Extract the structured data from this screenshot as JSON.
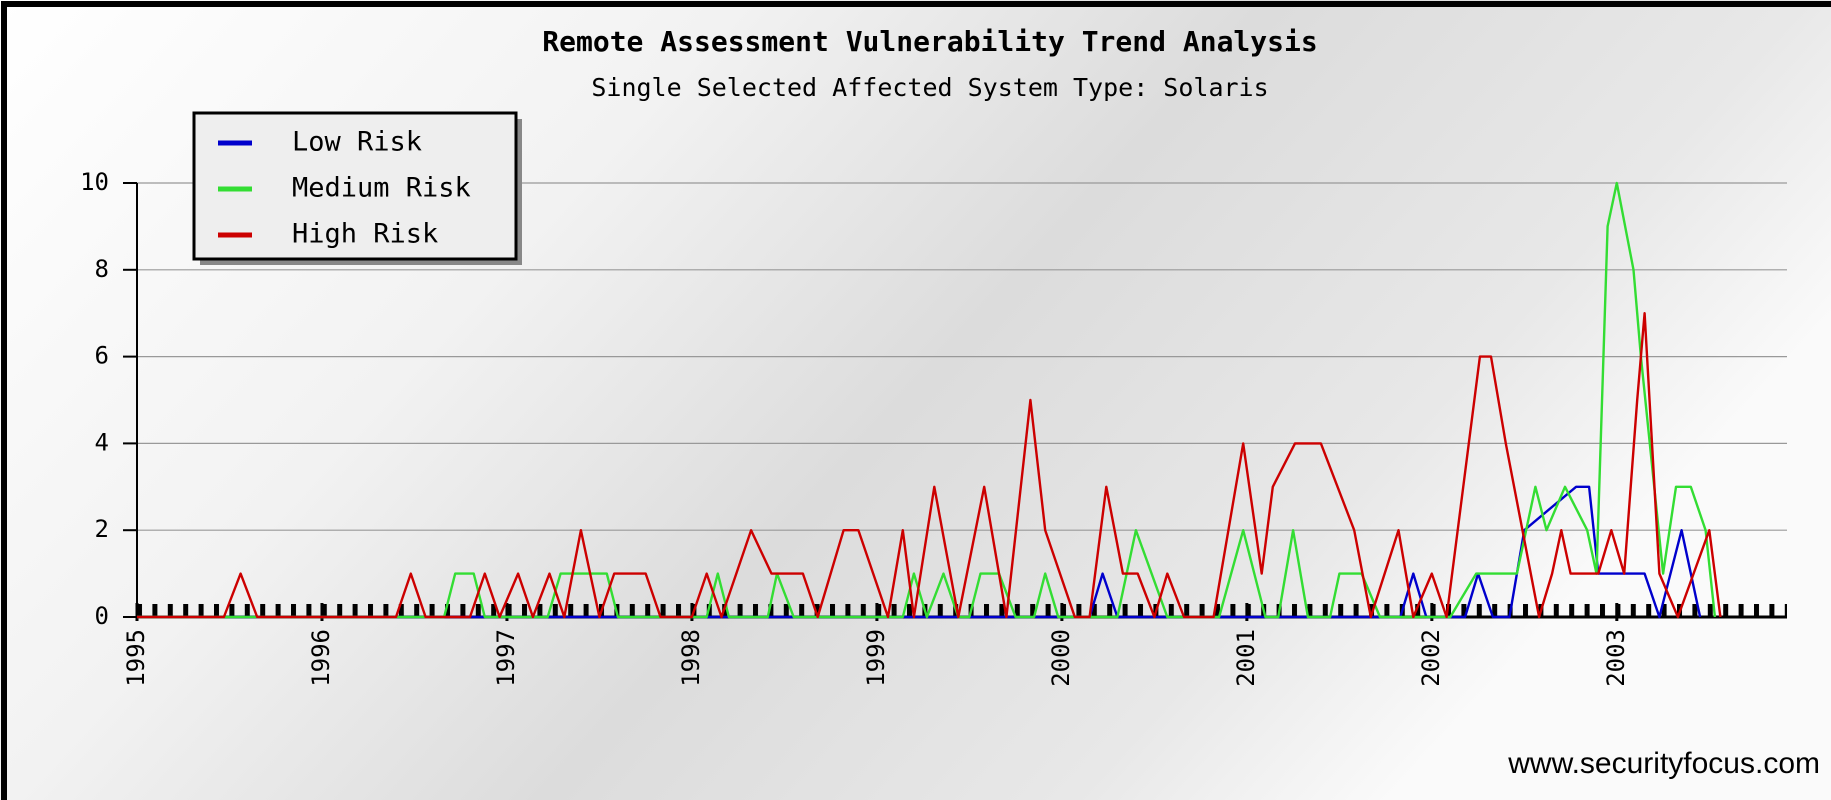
{
  "chart_data": {
    "type": "line",
    "title": "Remote Assessment Vulnerability Trend Analysis",
    "subtitle": "Single Selected Affected System Type: Solaris",
    "xlim": [
      1995,
      2003.92
    ],
    "xticks": [
      1995,
      1996,
      1997,
      1998,
      1999,
      2000,
      2001,
      2002,
      2003
    ],
    "ylim": [
      0,
      10
    ],
    "yticks": [
      0,
      2,
      4,
      6,
      8,
      10
    ],
    "grid": true,
    "legend": "upper left",
    "series": [
      {
        "name": "Low Risk",
        "color": "#0000cc",
        "x": [
          1995,
          2000.15,
          2000.22,
          2000.3,
          2001.83,
          2001.9,
          2001.97,
          2002.18,
          2002.25,
          2002.33,
          2002.42,
          2002.5,
          2002.78,
          2002.85,
          2002.9,
          2003.15,
          2003.23,
          2003.35,
          2003.45
        ],
        "values": [
          0,
          0,
          1,
          0,
          0,
          1,
          0,
          0,
          1,
          0,
          0,
          2,
          3,
          3,
          1,
          1,
          0,
          2,
          0
        ]
      },
      {
        "name": "Medium Risk",
        "color": "#33dd33",
        "x": [
          1995,
          1996.66,
          1996.72,
          1996.82,
          1996.88,
          1997.22,
          1997.29,
          1997.54,
          1997.6,
          1998.08,
          1998.14,
          1998.2,
          1998.41,
          1998.46,
          1998.55,
          1999.14,
          1999.2,
          1999.27,
          1999.36,
          1999.44,
          1999.5,
          1999.56,
          1999.66,
          1999.75,
          1999.85,
          1999.91,
          1999.98,
          2000.3,
          2000.4,
          2000.57,
          2000.85,
          2000.98,
          2001.1,
          2001.17,
          2001.25,
          2001.33,
          2001.45,
          2001.5,
          2001.62,
          2001.72,
          2002.1,
          2002.24,
          2002.46,
          2002.56,
          2002.62,
          2002.72,
          2002.84,
          2002.89,
          2002.95,
          2003.0,
          2003.09,
          2003.13,
          2003.25,
          2003.32,
          2003.4,
          2003.48,
          2003.53
        ],
        "values": [
          0,
          0,
          1,
          1,
          0,
          0,
          1,
          1,
          0,
          0,
          1,
          0,
          0,
          1,
          0,
          0,
          1,
          0,
          1,
          0,
          0,
          1,
          1,
          0,
          0,
          1,
          0,
          0,
          2,
          0,
          0,
          2,
          0,
          0,
          2,
          0,
          0,
          1,
          1,
          0,
          0,
          1,
          1,
          3,
          2,
          3,
          2,
          1,
          9,
          10,
          8,
          6,
          1,
          3,
          3,
          2,
          0
        ]
      },
      {
        "name": "High Risk",
        "color": "#cc0000",
        "x": [
          1995,
          1995.47,
          1995.56,
          1995.65,
          1996.4,
          1996.48,
          1996.56,
          1996.8,
          1996.88,
          1996.96,
          1997.06,
          1997.14,
          1997.23,
          1997.31,
          1997.4,
          1997.5,
          1997.58,
          1997.65,
          1997.75,
          1997.83,
          1998.0,
          1998.08,
          1998.16,
          1998.32,
          1998.43,
          1998.6,
          1998.68,
          1998.82,
          1998.9,
          1999.06,
          1999.14,
          1999.2,
          1999.31,
          1999.44,
          1999.58,
          1999.7,
          1999.83,
          1999.91,
          2000.07,
          2000.15,
          2000.24,
          2000.33,
          2000.41,
          2000.5,
          2000.57,
          2000.66,
          2000.82,
          2000.98,
          2001.08,
          2001.14,
          2001.26,
          2001.4,
          2001.58,
          2001.67,
          2001.82,
          2001.9,
          2002.0,
          2002.08,
          2002.26,
          2002.32,
          2002.4,
          2002.58,
          2002.65,
          2002.7,
          2002.75,
          2002.9,
          2002.97,
          2003.04,
          2003.11,
          2003.15,
          2003.23,
          2003.33,
          2003.5,
          2003.56
        ],
        "values": [
          0,
          0,
          1,
          0,
          0,
          1,
          0,
          0,
          1,
          0,
          1,
          0,
          1,
          0,
          2,
          0,
          1,
          1,
          1,
          0,
          0,
          1,
          0,
          2,
          1,
          1,
          0,
          2,
          2,
          0,
          2,
          0,
          3,
          0,
          3,
          0,
          5,
          2,
          0,
          0,
          3,
          1,
          1,
          0,
          1,
          0,
          0,
          4,
          1,
          3,
          4,
          4,
          2,
          0,
          2,
          0,
          1,
          0,
          6,
          6,
          4,
          0,
          1,
          2,
          1,
          1,
          2,
          1,
          5,
          7,
          1,
          0,
          2,
          0
        ]
      }
    ],
    "source": "www.securityfocus.com"
  }
}
